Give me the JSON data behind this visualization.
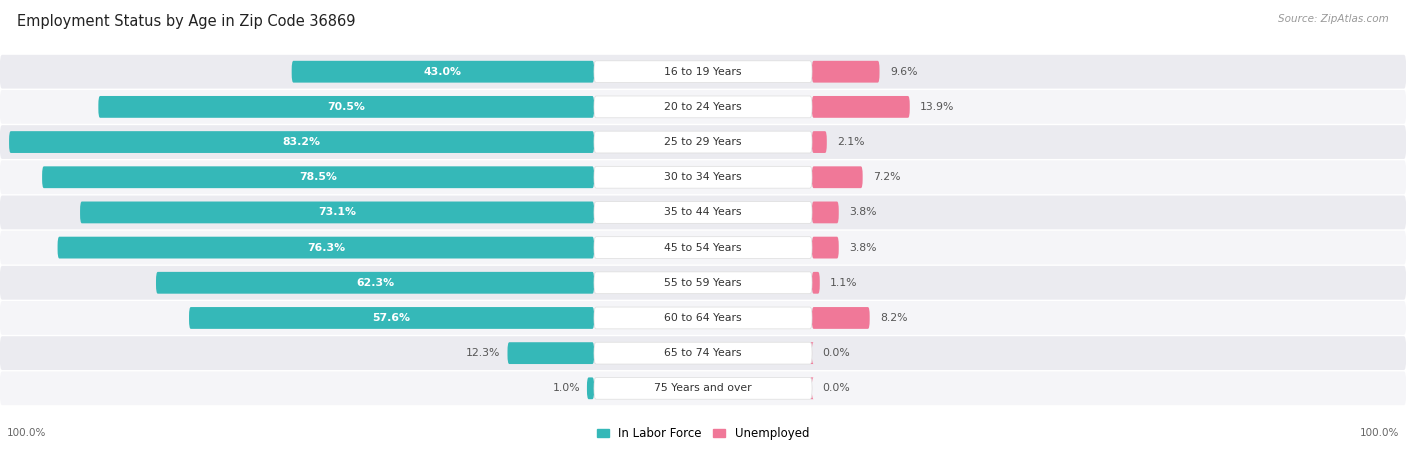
{
  "title": "Employment Status by Age in Zip Code 36869",
  "source": "Source: ZipAtlas.com",
  "categories": [
    "16 to 19 Years",
    "20 to 24 Years",
    "25 to 29 Years",
    "30 to 34 Years",
    "35 to 44 Years",
    "45 to 54 Years",
    "55 to 59 Years",
    "60 to 64 Years",
    "65 to 74 Years",
    "75 Years and over"
  ],
  "labor_force": [
    43.0,
    70.5,
    83.2,
    78.5,
    73.1,
    76.3,
    62.3,
    57.6,
    12.3,
    1.0
  ],
  "unemployed": [
    9.6,
    13.9,
    2.1,
    7.2,
    3.8,
    3.8,
    1.1,
    8.2,
    0.0,
    0.0
  ],
  "labor_color": "#35b8b8",
  "unemployed_color": "#f07898",
  "row_bg_dark": "#ebebf0",
  "row_bg_light": "#f5f5f8",
  "title_fontsize": 10.5,
  "source_fontsize": 7.5,
  "label_fontsize": 7.8,
  "cat_fontsize": 7.8,
  "legend_fontsize": 8.5,
  "axis_label_fontsize": 7.5,
  "background_color": "#ffffff"
}
